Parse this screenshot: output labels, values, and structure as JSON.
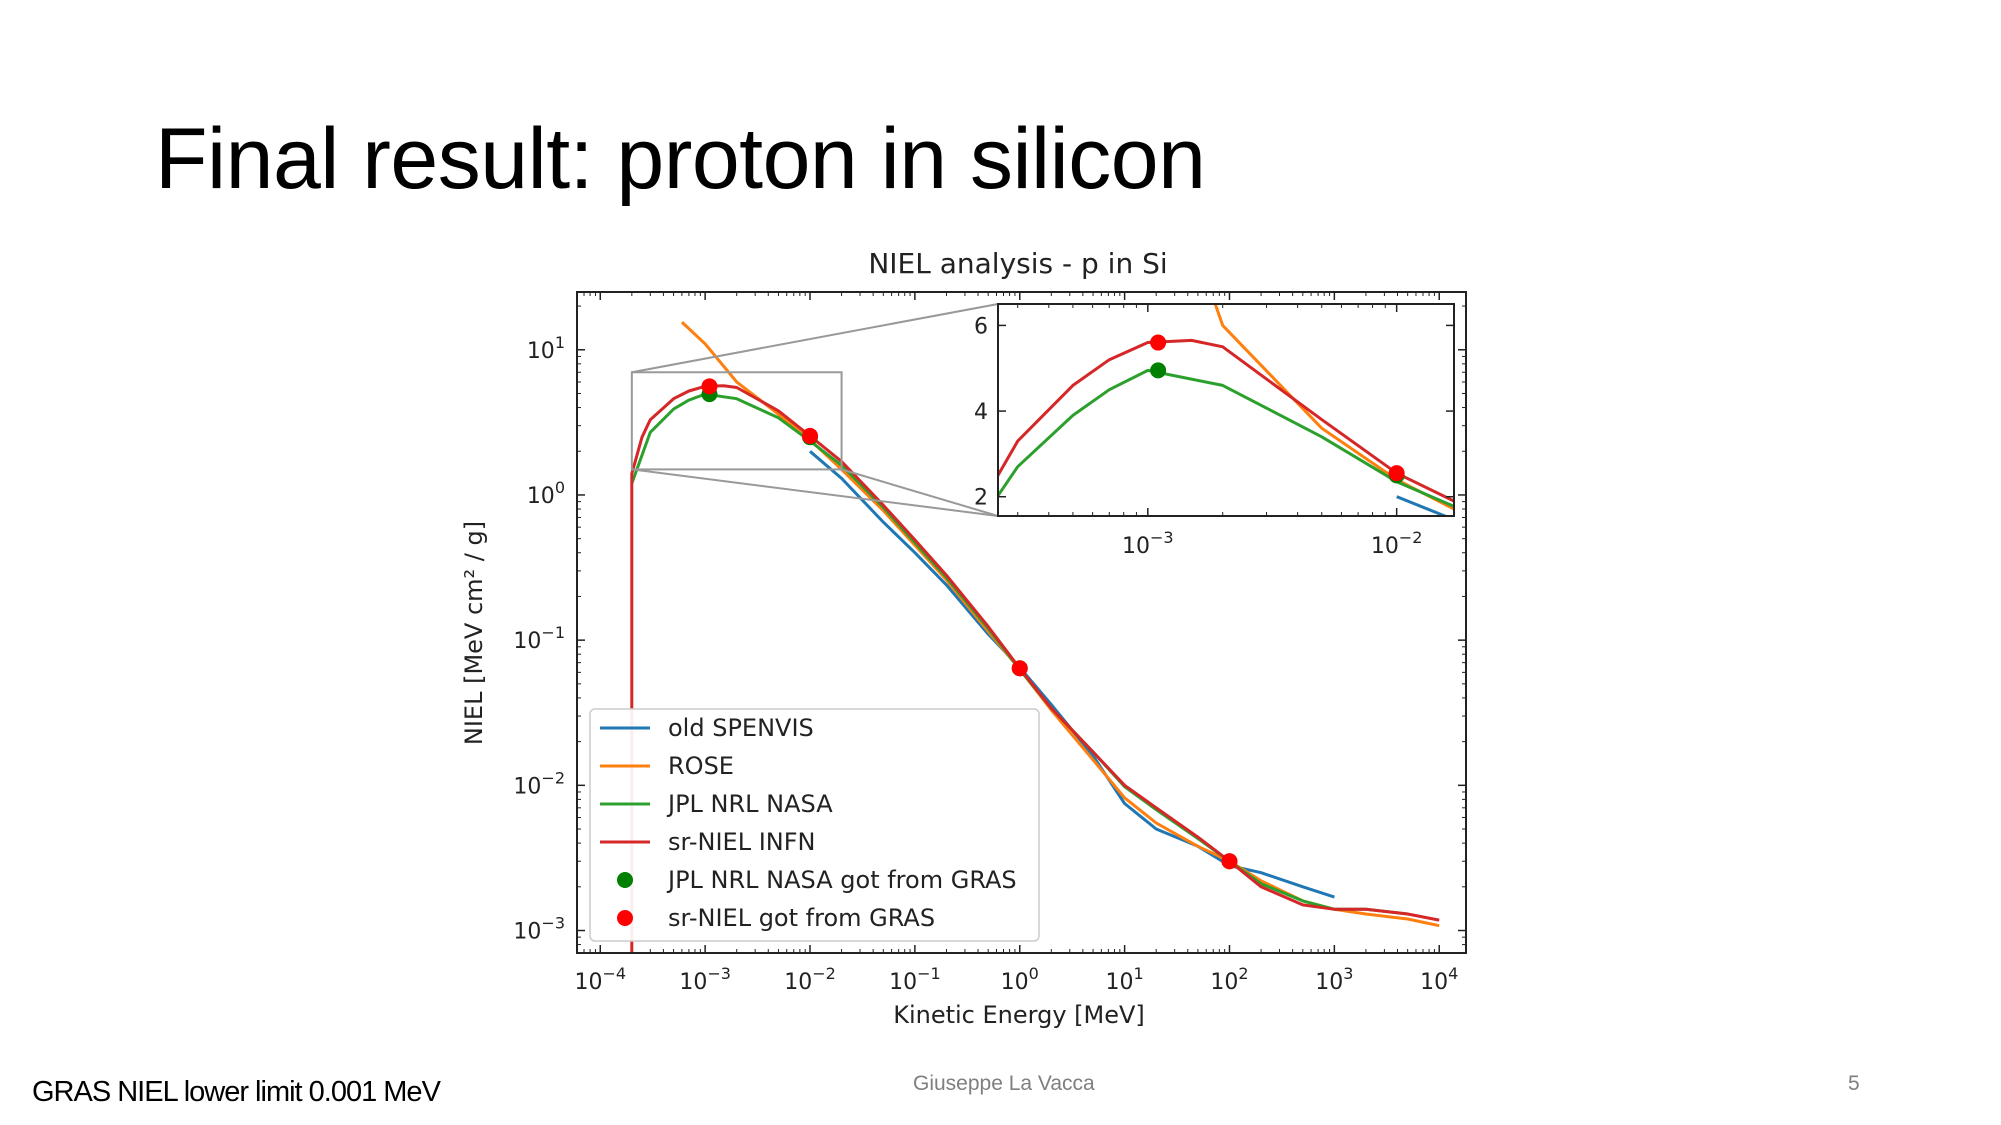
{
  "slide": {
    "title": "Final result: proton in silicon",
    "footer_note": "GRAS NIEL lower limit 0.001 MeV",
    "author": "Giuseppe La Vacca",
    "page_number": "5"
  },
  "chart_data": {
    "type": "line",
    "title": "NIEL analysis - p in Si",
    "xlabel": "Kinetic Energy [MeV]",
    "ylabel": "NIEL [MeV cm² / g]",
    "xscale": "log",
    "yscale": "log",
    "xlim": [
      6e-05,
      18000
    ],
    "ylim": [
      0.0007,
      25
    ],
    "x_ticks": [
      {
        "value": 0.0001,
        "base": "10",
        "exp": "−4"
      },
      {
        "value": 0.001,
        "base": "10",
        "exp": "−3"
      },
      {
        "value": 0.01,
        "base": "10",
        "exp": "−2"
      },
      {
        "value": 0.1,
        "base": "10",
        "exp": "−1"
      },
      {
        "value": 1,
        "base": "10",
        "exp": "0"
      },
      {
        "value": 10,
        "base": "10",
        "exp": "1"
      },
      {
        "value": 100,
        "base": "10",
        "exp": "2"
      },
      {
        "value": 1000,
        "base": "10",
        "exp": "3"
      },
      {
        "value": 10000,
        "base": "10",
        "exp": "4"
      }
    ],
    "y_ticks": [
      {
        "value": 0.001,
        "base": "10",
        "exp": "−3"
      },
      {
        "value": 0.01,
        "base": "10",
        "exp": "−2"
      },
      {
        "value": 0.1,
        "base": "10",
        "exp": "−1"
      },
      {
        "value": 1,
        "base": "10",
        "exp": "0"
      },
      {
        "value": 10,
        "base": "10",
        "exp": "1"
      }
    ],
    "grid": false,
    "legend_position": "lower-left",
    "series": [
      {
        "name": "old SPENVIS",
        "kind": "line",
        "color": "#1f77b4",
        "x": [
          0.01,
          0.02,
          0.05,
          0.1,
          0.2,
          0.5,
          1,
          2,
          5,
          10,
          20,
          50,
          100,
          200,
          500,
          1000
        ],
        "y": [
          2.0,
          1.3,
          0.65,
          0.4,
          0.24,
          0.11,
          0.065,
          0.036,
          0.016,
          0.0075,
          0.005,
          0.0038,
          0.0028,
          0.0025,
          0.002,
          0.0017
        ]
      },
      {
        "name": "ROSE",
        "kind": "line",
        "color": "#ff7f0e",
        "x": [
          0.0006,
          0.001,
          0.002,
          0.005,
          0.01,
          0.02,
          0.05,
          0.1,
          0.2,
          0.5,
          1,
          2,
          5,
          10,
          20,
          50,
          100,
          200,
          500,
          1000,
          2000,
          5000,
          10000
        ],
        "y": [
          15.5,
          11,
          6,
          3.6,
          2.4,
          1.5,
          0.78,
          0.45,
          0.26,
          0.115,
          0.063,
          0.033,
          0.015,
          0.0082,
          0.0055,
          0.0038,
          0.003,
          0.0022,
          0.0016,
          0.0014,
          0.0013,
          0.0012,
          0.00108
        ]
      },
      {
        "name": "JPL NRL NASA",
        "kind": "line",
        "color": "#2ca02c",
        "x": [
          0.0002,
          0.0003,
          0.0005,
          0.0007,
          0.001,
          0.002,
          0.005,
          0.01,
          0.02,
          0.05,
          0.1,
          0.2,
          0.5,
          1,
          2,
          5,
          10,
          20,
          50,
          100,
          200,
          500,
          1000,
          2000,
          5000
        ],
        "y": [
          1.2,
          2.7,
          3.9,
          4.5,
          4.95,
          4.6,
          3.4,
          2.35,
          1.6,
          0.82,
          0.47,
          0.27,
          0.12,
          0.063,
          0.034,
          0.017,
          0.0098,
          0.0068,
          0.0043,
          0.003,
          0.0021,
          0.0016,
          0.0014,
          0.0014,
          0.0013
        ]
      },
      {
        "name": "sr-NIEL INFN",
        "kind": "line",
        "color": "#d62728",
        "x": [
          0.0002,
          0.0002,
          0.0002,
          0.00025,
          0.0003,
          0.0005,
          0.0007,
          0.001,
          0.0015,
          0.002,
          0.005,
          0.01,
          0.02,
          0.05,
          0.1,
          0.2,
          0.5,
          1,
          2,
          5,
          10,
          20,
          50,
          100,
          200,
          500,
          1000,
          2000,
          5000,
          10000
        ],
        "y": [
          0.0007,
          0.02,
          1.4,
          2.5,
          3.3,
          4.6,
          5.2,
          5.6,
          5.65,
          5.5,
          3.8,
          2.55,
          1.7,
          0.85,
          0.49,
          0.28,
          0.124,
          0.064,
          0.034,
          0.017,
          0.01,
          0.007,
          0.0044,
          0.003,
          0.002,
          0.0015,
          0.0014,
          0.0014,
          0.0013,
          0.00118
        ]
      },
      {
        "name": "JPL NRL NASA got from GRAS",
        "kind": "scatter",
        "color": "#008000",
        "x": [
          0.0011,
          0.01,
          1,
          100
        ],
        "y": [
          4.95,
          2.5,
          0.064,
          0.003
        ]
      },
      {
        "name": "sr-NIEL got from GRAS",
        "kind": "scatter",
        "color": "#ff0000",
        "x": [
          0.0011,
          0.01,
          1,
          100
        ],
        "y": [
          5.6,
          2.55,
          0.064,
          0.003
        ]
      }
    ],
    "inset": {
      "source_box": {
        "x": [
          0.0002,
          0.02
        ],
        "y": [
          1.5,
          7
        ]
      },
      "xlim": [
        0.00025,
        0.017
      ],
      "ylim": [
        1.55,
        6.5
      ],
      "xscale": "log",
      "yscale": "linear",
      "x_ticks": [
        {
          "value": 0.001,
          "base": "10",
          "exp": "−3"
        },
        {
          "value": 0.01,
          "base": "10",
          "exp": "−2"
        }
      ],
      "y_ticks": [
        2,
        4,
        6
      ]
    }
  }
}
